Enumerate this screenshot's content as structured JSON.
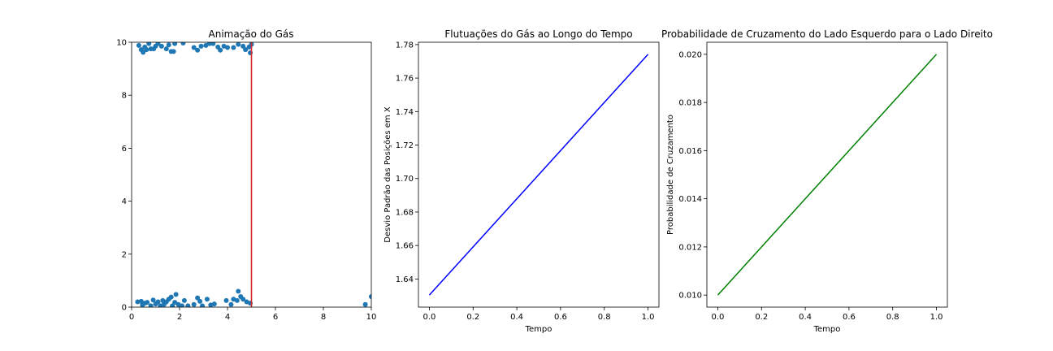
{
  "colors": {
    "scatter": "#1f77b4",
    "divider": "#d62728",
    "std_line": "#0000ff",
    "prob_line": "#008000"
  },
  "chart_data": [
    {
      "type": "scatter",
      "title": "Animação do Gás",
      "xlabel": "",
      "ylabel": "",
      "xlim": [
        0,
        10
      ],
      "ylim": [
        0,
        10
      ],
      "xticks": [
        "0",
        "2",
        "4",
        "6",
        "8",
        "10"
      ],
      "yticks": [
        "0",
        "2",
        "4",
        "6",
        "8",
        "10"
      ],
      "grid": false,
      "divider_x": 5,
      "points": [
        [
          0.3,
          9.88
        ],
        [
          0.4,
          9.72
        ],
        [
          0.48,
          9.62
        ],
        [
          0.55,
          9.82
        ],
        [
          0.62,
          9.72
        ],
        [
          0.72,
          9.95
        ],
        [
          0.8,
          9.75
        ],
        [
          0.92,
          9.75
        ],
        [
          1.0,
          9.85
        ],
        [
          1.1,
          9.95
        ],
        [
          1.25,
          9.85
        ],
        [
          1.45,
          9.75
        ],
        [
          1.55,
          9.9
        ],
        [
          1.65,
          9.65
        ],
        [
          1.75,
          9.65
        ],
        [
          1.8,
          9.95
        ],
        [
          2.15,
          9.97
        ],
        [
          2.6,
          9.8
        ],
        [
          2.75,
          9.7
        ],
        [
          2.9,
          9.85
        ],
        [
          3.1,
          9.88
        ],
        [
          3.25,
          9.95
        ],
        [
          3.4,
          9.95
        ],
        [
          3.6,
          9.82
        ],
        [
          3.7,
          9.7
        ],
        [
          3.85,
          9.85
        ],
        [
          4.0,
          9.8
        ],
        [
          4.25,
          9.8
        ],
        [
          4.45,
          9.92
        ],
        [
          4.65,
          9.85
        ],
        [
          4.75,
          9.72
        ],
        [
          4.9,
          9.82
        ],
        [
          4.95,
          9.6
        ],
        [
          5.0,
          9.92
        ],
        [
          0.25,
          0.2
        ],
        [
          0.4,
          0.22
        ],
        [
          0.45,
          0.08
        ],
        [
          0.55,
          0.15
        ],
        [
          0.65,
          0.18
        ],
        [
          0.8,
          0.05
        ],
        [
          0.9,
          0.27
        ],
        [
          1.0,
          0.12
        ],
        [
          1.1,
          0.2
        ],
        [
          1.2,
          0.05
        ],
        [
          1.3,
          0.25
        ],
        [
          1.35,
          0.1
        ],
        [
          1.45,
          0.2
        ],
        [
          1.55,
          0.3
        ],
        [
          1.65,
          0.38
        ],
        [
          1.7,
          0.05
        ],
        [
          1.8,
          0.18
        ],
        [
          1.85,
          0.48
        ],
        [
          1.95,
          0.1
        ],
        [
          2.1,
          0.05
        ],
        [
          2.2,
          0.25
        ],
        [
          2.35,
          0.05
        ],
        [
          2.6,
          0.1
        ],
        [
          2.75,
          0.35
        ],
        [
          2.85,
          0.22
        ],
        [
          2.95,
          0.05
        ],
        [
          3.15,
          0.3
        ],
        [
          3.3,
          0.08
        ],
        [
          3.45,
          0.12
        ],
        [
          3.95,
          0.25
        ],
        [
          4.15,
          0.1
        ],
        [
          4.25,
          0.3
        ],
        [
          4.4,
          0.25
        ],
        [
          4.45,
          0.6
        ],
        [
          4.55,
          0.4
        ],
        [
          4.65,
          0.3
        ],
        [
          4.8,
          0.2
        ],
        [
          4.95,
          0.15
        ],
        [
          9.75,
          0.1
        ],
        [
          10.0,
          0.4
        ]
      ]
    },
    {
      "type": "line",
      "title": "Flutuações do Gás ao Longo do Tempo",
      "xlabel": "Tempo",
      "ylabel": "Desvio Padrão das Posições em X",
      "xlim": [
        -0.05,
        1.05
      ],
      "ylim": [
        1.6232,
        1.7814
      ],
      "xtick_values": [
        0.0,
        0.2,
        0.4,
        0.6,
        0.8,
        1.0
      ],
      "xticks": [
        "0.0",
        "0.2",
        "0.4",
        "0.6",
        "0.8",
        "1.0"
      ],
      "ytick_values": [
        1.64,
        1.66,
        1.68,
        1.7,
        1.72,
        1.74,
        1.76,
        1.78
      ],
      "yticks": [
        "1.64",
        "1.66",
        "1.68",
        "1.70",
        "1.72",
        "1.74",
        "1.76",
        "1.78"
      ],
      "grid": false,
      "x": [
        0.0,
        1.0
      ],
      "y": [
        1.6304,
        1.7742
      ]
    },
    {
      "type": "line",
      "title": "Probabilidade de Cruzamento do Lado Esquerdo para o Lado Direito",
      "xlabel": "Tempo",
      "ylabel": "Probabilidade de Cruzamento",
      "xlim": [
        -0.05,
        1.05
      ],
      "ylim": [
        0.0095,
        0.0205
      ],
      "xtick_values": [
        0.0,
        0.2,
        0.4,
        0.6,
        0.8,
        1.0
      ],
      "xticks": [
        "0.0",
        "0.2",
        "0.4",
        "0.6",
        "0.8",
        "1.0"
      ],
      "ytick_values": [
        0.01,
        0.012,
        0.014,
        0.016,
        0.018,
        0.02
      ],
      "yticks": [
        "0.010",
        "0.012",
        "0.014",
        "0.016",
        "0.018",
        "0.020"
      ],
      "grid": false,
      "x": [
        0.0,
        1.0
      ],
      "y": [
        0.01,
        0.02
      ]
    }
  ]
}
